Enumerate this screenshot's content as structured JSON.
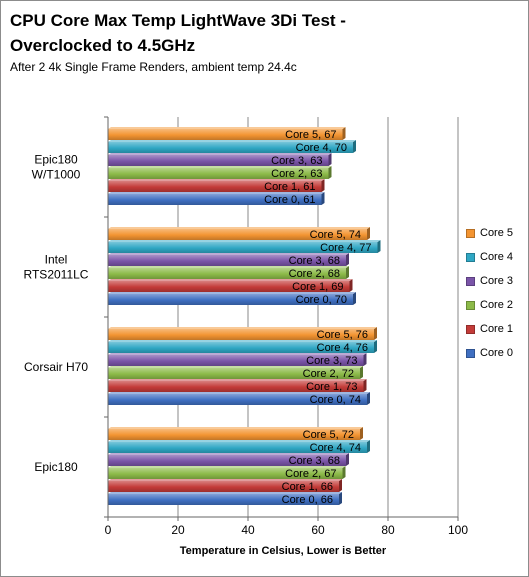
{
  "chart_data": {
    "type": "bar",
    "orientation": "horizontal",
    "title": "CPU Core Max Temp LightWave 3Di Test - Overclocked to 4.5GHz",
    "subtitle": "After 2 4k Single Frame Renders, ambient temp 24.4c",
    "xlabel": "Temperature in Celsius,  Lower is Better",
    "xlim": [
      0,
      100
    ],
    "xticks": [
      0,
      20,
      40,
      60,
      80,
      100
    ],
    "grid": true,
    "legend_position": "right",
    "categories": [
      "Epic180 W/T1000",
      "Intel RTS2011LC",
      "Corsair H70",
      "Epic180"
    ],
    "series": [
      {
        "name": "Core 0",
        "color": "#3f6fc1",
        "values": [
          61,
          70,
          74,
          66
        ]
      },
      {
        "name": "Core 1",
        "color": "#c33b38",
        "values": [
          61,
          69,
          73,
          66
        ]
      },
      {
        "name": "Core 2",
        "color": "#8cba48",
        "values": [
          63,
          68,
          72,
          67
        ]
      },
      {
        "name": "Core 3",
        "color": "#7a54a8",
        "values": [
          63,
          68,
          73,
          68
        ]
      },
      {
        "name": "Core 4",
        "color": "#2fa7c4",
        "values": [
          70,
          77,
          76,
          74
        ]
      },
      {
        "name": "Core 5",
        "color": "#f39431",
        "values": [
          67,
          74,
          76,
          72
        ]
      }
    ]
  }
}
